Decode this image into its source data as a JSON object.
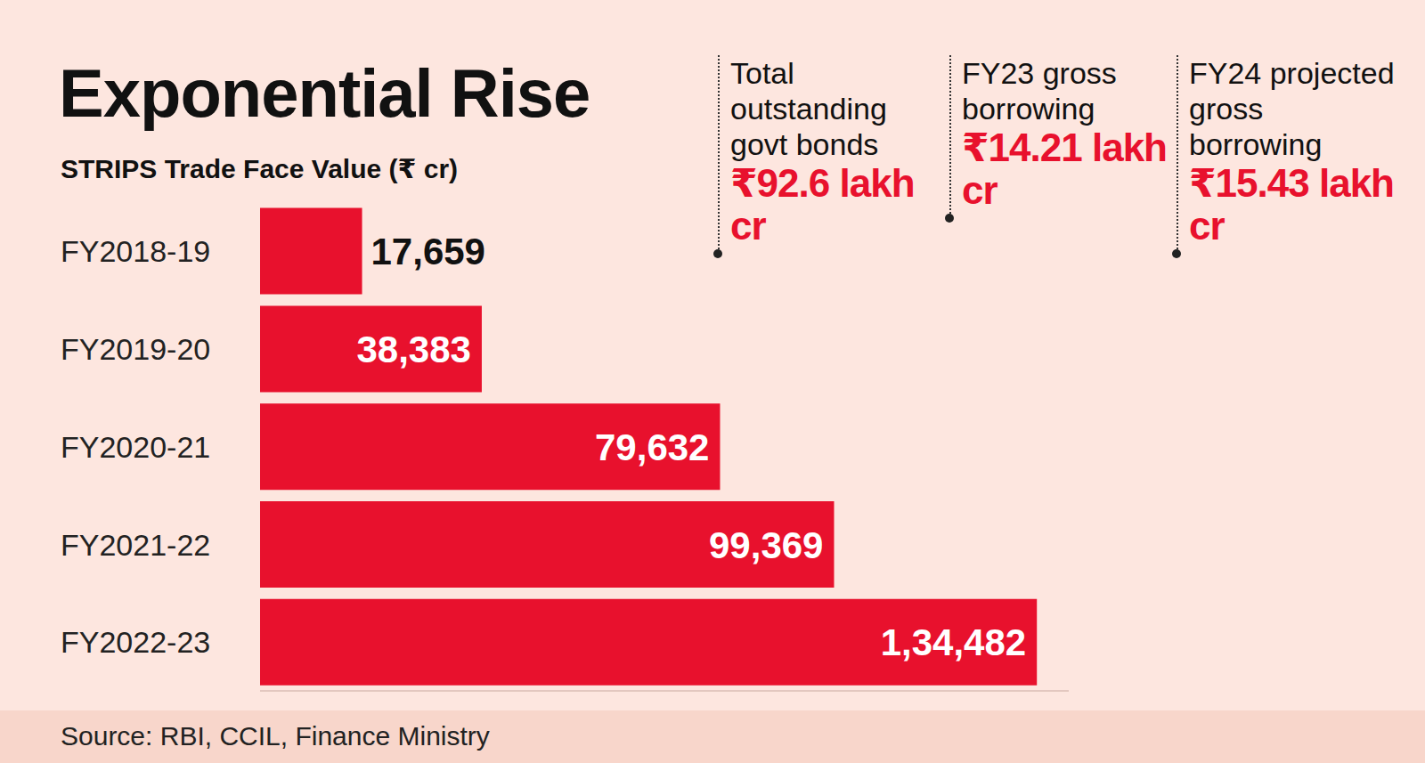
{
  "chart_data": {
    "type": "bar",
    "title": "Exponential Rise",
    "subtitle": "STRIPS Trade Face Value (₹ cr)",
    "orientation": "horizontal",
    "categories": [
      "FY2018-19",
      "FY2019-20",
      "FY2020-21",
      "FY2021-22",
      "FY2022-23"
    ],
    "values": [
      17659,
      38383,
      79632,
      99369,
      134482
    ],
    "value_labels": [
      "17,659",
      "38,383",
      "79,632",
      "99,369",
      "1,34,482"
    ],
    "data_labels": true,
    "color": "#e8112d",
    "xlim": [
      0,
      140000
    ],
    "tick_labels": "y",
    "grid": false,
    "annotations": [
      {
        "label": "Total outstanding govt bonds",
        "text": "₹92.6 lakh cr"
      },
      {
        "label": "FY23 gross borrowing",
        "text": "₹14.21 lakh cr"
      },
      {
        "label": "FY24 projected gross borrowing",
        "text": "₹15.43 lakh cr"
      }
    ],
    "source": "Source: RBI, CCIL, Finance Ministry"
  }
}
